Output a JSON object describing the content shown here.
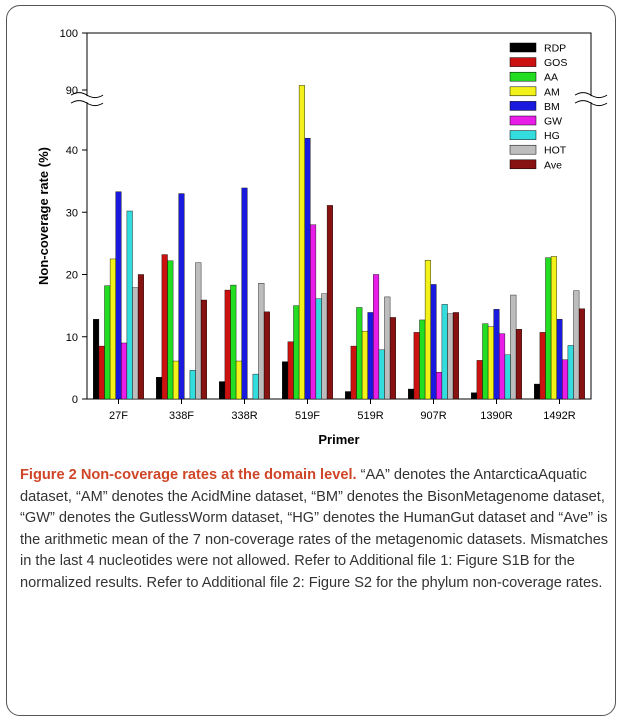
{
  "chart_data": {
    "type": "bar",
    "xlabel": "Primer",
    "ylabel": "Non-coverage rate (%)",
    "categories": [
      "27F",
      "338F",
      "338R",
      "519F",
      "519R",
      "907R",
      "1390R",
      "1492R"
    ],
    "ylim": [
      0,
      100
    ],
    "y_break": [
      45,
      88
    ],
    "y_ticks": [
      0,
      10,
      20,
      30,
      40,
      90,
      100
    ],
    "grid": false,
    "legend_position": "top-right",
    "series": [
      {
        "name": "RDP",
        "color": "#000000",
        "values": [
          12.8,
          3.5,
          2.8,
          6.0,
          1.2,
          1.6,
          1.0,
          2.4
        ]
      },
      {
        "name": "GOS",
        "color": "#cc1111",
        "values": [
          8.5,
          23.2,
          17.5,
          9.2,
          8.5,
          10.7,
          6.2,
          10.7
        ]
      },
      {
        "name": "AA",
        "color": "#22dd22",
        "values": [
          18.2,
          22.2,
          18.3,
          15.0,
          14.7,
          12.7,
          12.1,
          22.7
        ]
      },
      {
        "name": "AM",
        "color": "#f2f21a",
        "values": [
          22.5,
          6.1,
          6.1,
          90.8,
          10.9,
          22.3,
          11.6,
          22.9
        ]
      },
      {
        "name": "BM",
        "color": "#1a1adf",
        "values": [
          33.3,
          33.0,
          33.9,
          41.9,
          13.9,
          18.4,
          14.4,
          12.8
        ]
      },
      {
        "name": "GW",
        "color": "#e81ee8",
        "values": [
          9.0,
          0,
          0,
          28.0,
          20.0,
          4.3,
          10.5,
          6.3
        ]
      },
      {
        "name": "HG",
        "color": "#33dddd",
        "values": [
          30.2,
          4.6,
          4.0,
          16.1,
          7.9,
          15.2,
          7.1,
          8.6
        ]
      },
      {
        "name": "HOT",
        "color": "#bdbdbd",
        "values": [
          17.9,
          21.9,
          18.6,
          16.9,
          16.4,
          13.7,
          16.7,
          17.4
        ]
      },
      {
        "name": "Ave",
        "color": "#881111",
        "values": [
          20.0,
          15.9,
          14.0,
          31.1,
          13.1,
          13.9,
          11.2,
          14.5
        ]
      }
    ]
  },
  "caption": {
    "title": "Figure 2 Non-coverage rates at the domain level.",
    "text": "“AA” denotes the AntarcticaAquatic dataset, “AM” denotes the AcidMine dataset, “BM” denotes the BisonMetagenome dataset, “GW” denotes the GutlessWorm dataset, “HG” denotes the HumanGut dataset and “Ave” is the arithmetic mean of the 7 non-coverage rates of the metagenomic datasets. Mismatches in the last 4 nucleotides were not allowed. Refer to Additional file 1: Figure S1B for the normalized results. Refer to Additional file 2: Figure S2 for the phylum non-coverage rates."
  }
}
